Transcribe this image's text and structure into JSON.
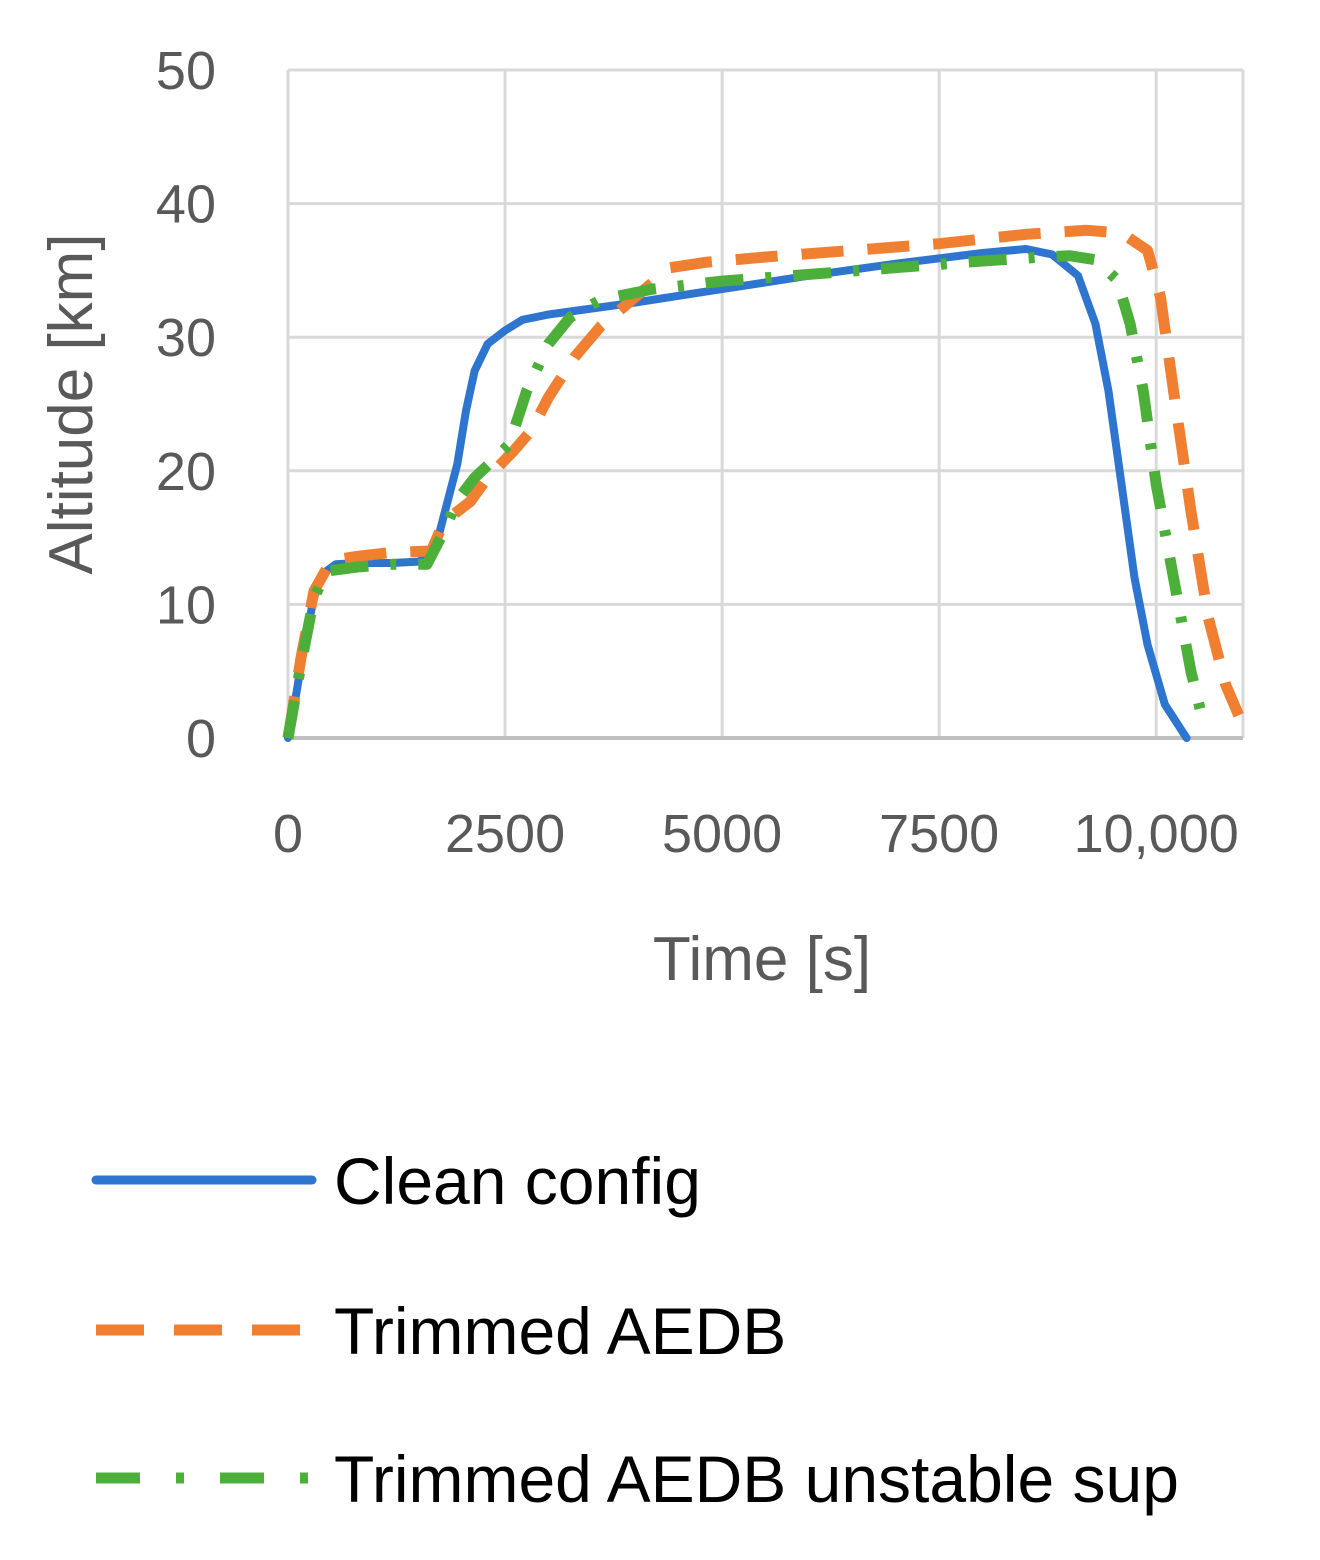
{
  "chart_data": {
    "type": "line",
    "title": "",
    "xlabel": "Time [s]",
    "ylabel": "Altitude [km]",
    "xlim": [
      0,
      11000
    ],
    "ylim": [
      0,
      50
    ],
    "xticks": [
      0,
      2500,
      5000,
      7500,
      10000
    ],
    "xtick_labels": [
      "0",
      "2500",
      "5000",
      "7500",
      "10,000"
    ],
    "yticks": [
      0,
      10,
      20,
      30,
      40,
      50
    ],
    "ytick_labels": [
      "0",
      "10",
      "20",
      "30",
      "40",
      "50"
    ],
    "grid": true,
    "legend_position": "bottom",
    "series": [
      {
        "name": "Clean config",
        "color": "#2E75D0",
        "style": "solid",
        "points": [
          [
            0,
            0
          ],
          [
            100,
            3.5
          ],
          [
            200,
            7.5
          ],
          [
            300,
            10.5
          ],
          [
            400,
            12.3
          ],
          [
            550,
            13.0
          ],
          [
            800,
            13.1
          ],
          [
            1200,
            13.1
          ],
          [
            1500,
            13.2
          ],
          [
            1650,
            13.6
          ],
          [
            1750,
            15.5
          ],
          [
            1850,
            18.0
          ],
          [
            1950,
            20.5
          ],
          [
            2050,
            24.5
          ],
          [
            2150,
            27.5
          ],
          [
            2300,
            29.5
          ],
          [
            2500,
            30.5
          ],
          [
            2700,
            31.3
          ],
          [
            3000,
            31.7
          ],
          [
            4000,
            32.6
          ],
          [
            5000,
            33.6
          ],
          [
            6000,
            34.6
          ],
          [
            7000,
            35.5
          ],
          [
            8000,
            36.3
          ],
          [
            8500,
            36.6
          ],
          [
            8800,
            36.2
          ],
          [
            9100,
            34.6
          ],
          [
            9300,
            31.0
          ],
          [
            9450,
            26.0
          ],
          [
            9600,
            19.0
          ],
          [
            9750,
            12.0
          ],
          [
            9900,
            7.0
          ],
          [
            10100,
            2.5
          ],
          [
            10350,
            0
          ]
        ]
      },
      {
        "name": "Trimmed AEDB",
        "color": "#F07F32",
        "style": "dashed",
        "points": [
          [
            0,
            0
          ],
          [
            150,
            6.0
          ],
          [
            300,
            11.0
          ],
          [
            500,
            13.3
          ],
          [
            800,
            13.6
          ],
          [
            1200,
            13.9
          ],
          [
            1650,
            14.0
          ],
          [
            1750,
            15.5
          ],
          [
            1900,
            16.7
          ],
          [
            2100,
            17.7
          ],
          [
            2300,
            19.5
          ],
          [
            2600,
            21.5
          ],
          [
            2800,
            23.0
          ],
          [
            3000,
            25.5
          ],
          [
            3300,
            28.5
          ],
          [
            3600,
            30.8
          ],
          [
            4000,
            33.0
          ],
          [
            4400,
            35.2
          ],
          [
            4800,
            35.6
          ],
          [
            5500,
            36.0
          ],
          [
            6500,
            36.5
          ],
          [
            7500,
            37.0
          ],
          [
            8500,
            37.7
          ],
          [
            9200,
            38.0
          ],
          [
            9600,
            37.8
          ],
          [
            9900,
            36.5
          ],
          [
            10050,
            33.0
          ],
          [
            10200,
            26.0
          ],
          [
            10400,
            17.0
          ],
          [
            10600,
            9.0
          ],
          [
            10800,
            4.0
          ],
          [
            10950,
            1.7
          ]
        ]
      },
      {
        "name": "Trimmed AEDB unstable sup",
        "color": "#4CAF3A",
        "style": "dashdot",
        "points": [
          [
            0,
            0
          ],
          [
            150,
            5.5
          ],
          [
            300,
            10.5
          ],
          [
            450,
            12.5
          ],
          [
            800,
            12.8
          ],
          [
            1200,
            13.0
          ],
          [
            1600,
            13.0
          ],
          [
            1800,
            15.5
          ],
          [
            1950,
            17.8
          ],
          [
            2150,
            19.5
          ],
          [
            2350,
            20.7
          ],
          [
            2550,
            22.0
          ],
          [
            2750,
            26.0
          ],
          [
            3000,
            29.5
          ],
          [
            3250,
            31.5
          ],
          [
            3600,
            32.8
          ],
          [
            4200,
            33.6
          ],
          [
            5000,
            34.2
          ],
          [
            6000,
            34.7
          ],
          [
            7000,
            35.2
          ],
          [
            8000,
            35.7
          ],
          [
            8700,
            36.0
          ],
          [
            9000,
            36.1
          ],
          [
            9300,
            35.8
          ],
          [
            9550,
            34.3
          ],
          [
            9700,
            31.0
          ],
          [
            9850,
            26.0
          ],
          [
            10000,
            19.0
          ],
          [
            10200,
            12.0
          ],
          [
            10400,
            5.0
          ],
          [
            10550,
            1.0
          ]
        ]
      }
    ]
  }
}
